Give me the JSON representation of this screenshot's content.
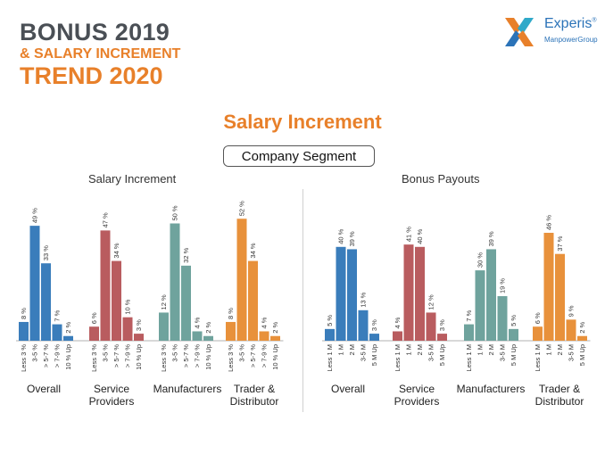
{
  "header": {
    "line1": "BONUS 2019",
    "line2": "& SALARY INCREMENT",
    "line3": "TREND 2020"
  },
  "logo": {
    "name": "Experis",
    "trademark": "®",
    "subname": "ManpowerGroup"
  },
  "section_title": "Salary Increment",
  "segment_label": "Company Segment",
  "colors": {
    "title_dark": "#4a4f55",
    "accent": "#e8802a",
    "overall": "#3a7dbb",
    "service_providers": "#b95c5f",
    "manufacturers": "#6fa39d",
    "trader_distributor": "#e8913b"
  },
  "chart_data": [
    {
      "type": "bar",
      "title": "Salary Increment",
      "categories": [
        "Less 3 %",
        "3-5 %",
        "> 5-7 %",
        "> 7-9 %",
        "10 % Up"
      ],
      "series": [
        {
          "name": "Overall",
          "values": [
            8,
            49,
            33,
            7,
            2
          ]
        },
        {
          "name": "Service Providers",
          "values": [
            6,
            47,
            34,
            10,
            3
          ]
        },
        {
          "name": "Manufacturers",
          "values": [
            12,
            50,
            32,
            4,
            2
          ]
        },
        {
          "name": "Trader & Distributor",
          "values": [
            8,
            52,
            34,
            4,
            2
          ]
        }
      ],
      "value_suffix": " %",
      "ylim": [
        0,
        55
      ]
    },
    {
      "type": "bar",
      "title": "Bonus Payouts",
      "categories": [
        "Less 1 M",
        "1 M",
        "2 M",
        "3-5 M",
        "5 M Up"
      ],
      "series": [
        {
          "name": "Overall",
          "values": [
            5,
            40,
            39,
            13,
            3
          ]
        },
        {
          "name": "Service Providers",
          "values": [
            4,
            41,
            40,
            12,
            3
          ]
        },
        {
          "name": "Manufacturers",
          "values": [
            7,
            30,
            39,
            19,
            5
          ]
        },
        {
          "name": "Trader & Distributor",
          "values": [
            6,
            46,
            37,
            9,
            2
          ]
        }
      ],
      "value_suffix": " %",
      "ylim": [
        0,
        55
      ]
    }
  ],
  "group_labels": [
    [
      "Overall"
    ],
    [
      "Service",
      "Providers"
    ],
    [
      "Manufacturers"
    ],
    [
      "Trader &",
      "Distributor"
    ]
  ]
}
